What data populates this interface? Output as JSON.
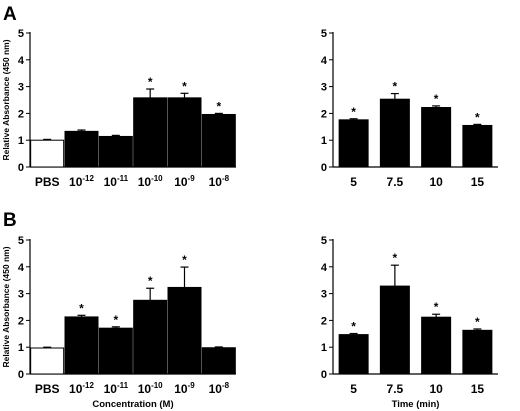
{
  "panel_labels": {
    "a": "A",
    "b": "B"
  },
  "chart_data": [
    {
      "id": "A-concentration",
      "type": "bar",
      "panel": "A",
      "title": "",
      "xlabel": "",
      "ylabel": "Relative Absorbance (450 nm)",
      "ylim": [
        0,
        5
      ],
      "yticks": [
        0,
        1,
        2,
        3,
        4,
        5
      ],
      "categories": [
        {
          "base": "PBS",
          "exp": ""
        },
        {
          "base": "10",
          "exp": "-12"
        },
        {
          "base": "10",
          "exp": "-11"
        },
        {
          "base": "10",
          "exp": "-10"
        },
        {
          "base": "10",
          "exp": "-9"
        },
        {
          "base": "10",
          "exp": "-8"
        }
      ],
      "values": [
        1.0,
        1.33,
        1.14,
        2.58,
        2.58,
        1.96
      ],
      "errors": [
        0.03,
        0.05,
        0.04,
        0.33,
        0.17,
        0.04
      ],
      "significant": [
        "",
        "",
        "",
        "*",
        "*",
        "*"
      ],
      "fills": [
        "#ffffff",
        "#000000",
        "#000000",
        "#000000",
        "#000000",
        "#000000"
      ]
    },
    {
      "id": "A-time",
      "type": "bar",
      "panel": "A",
      "title": "",
      "xlabel": "",
      "ylabel": "",
      "ylim": [
        0,
        5
      ],
      "yticks": [
        0,
        1,
        2,
        3,
        4,
        5
      ],
      "categories": [
        {
          "base": "5",
          "exp": ""
        },
        {
          "base": "7.5",
          "exp": ""
        },
        {
          "base": "10",
          "exp": ""
        },
        {
          "base": "15",
          "exp": ""
        }
      ],
      "values": [
        1.76,
        2.53,
        2.22,
        1.55
      ],
      "errors": [
        0.04,
        0.21,
        0.06,
        0.04
      ],
      "significant": [
        "*",
        "*",
        "*",
        "*"
      ],
      "fills": [
        "#000000",
        "#000000",
        "#000000",
        "#000000"
      ]
    },
    {
      "id": "B-concentration",
      "type": "bar",
      "panel": "B",
      "title": "",
      "xlabel": "Concentration (M)",
      "ylabel": "Relative Absorbance (450 nm)",
      "ylim": [
        0,
        5
      ],
      "yticks": [
        0,
        1,
        2,
        3,
        4,
        5
      ],
      "categories": [
        {
          "base": "PBS",
          "exp": ""
        },
        {
          "base": "10",
          "exp": "-12"
        },
        {
          "base": "10",
          "exp": "-11"
        },
        {
          "base": "10",
          "exp": "-10"
        },
        {
          "base": "10",
          "exp": "-9"
        },
        {
          "base": "10",
          "exp": "-8"
        }
      ],
      "values": [
        0.97,
        2.13,
        1.71,
        2.75,
        3.23,
        0.98
      ],
      "errors": [
        0.03,
        0.06,
        0.05,
        0.45,
        0.76,
        0.03
      ],
      "significant": [
        "",
        "*",
        "*",
        "*",
        "*",
        ""
      ],
      "fills": [
        "#ffffff",
        "#000000",
        "#000000",
        "#000000",
        "#000000",
        "#000000"
      ]
    },
    {
      "id": "B-time",
      "type": "bar",
      "panel": "B",
      "title": "",
      "xlabel": "Time (min)",
      "ylabel": "",
      "ylim": [
        0,
        5
      ],
      "yticks": [
        0,
        1,
        2,
        3,
        4,
        5
      ],
      "categories": [
        {
          "base": "5",
          "exp": ""
        },
        {
          "base": "7.5",
          "exp": ""
        },
        {
          "base": "10",
          "exp": ""
        },
        {
          "base": "15",
          "exp": ""
        }
      ],
      "values": [
        1.47,
        3.28,
        2.12,
        1.63
      ],
      "errors": [
        0.04,
        0.78,
        0.11,
        0.05
      ],
      "significant": [
        "*",
        "*",
        "*",
        "*"
      ],
      "fills": [
        "#000000",
        "#000000",
        "#000000",
        "#000000"
      ]
    }
  ]
}
